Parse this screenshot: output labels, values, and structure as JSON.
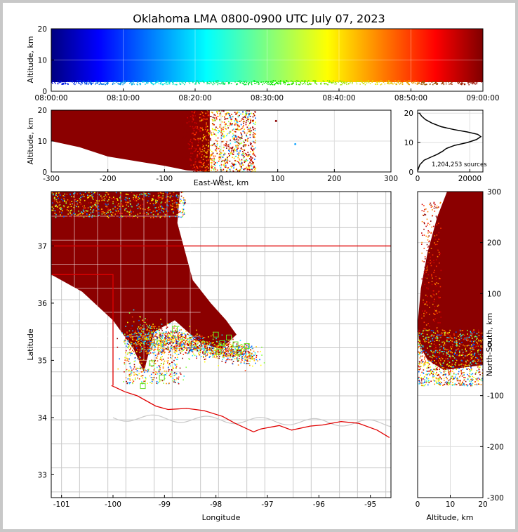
{
  "title": "Oklahoma LMA 0800-0900 UTC July 07, 2023",
  "colors": {
    "storm": "#8b0000",
    "state_border": "#e00000",
    "county_border": "#c8c8c8",
    "station": "#66dd22",
    "grid": "#dddddd"
  },
  "chart_data": [
    {
      "id": "time_altitude",
      "type": "scatter",
      "ylabel": "Altitude, km",
      "x_ticks": [
        "08:00:00",
        "08:10:00",
        "08:20:00",
        "08:30:00",
        "08:40:00",
        "08:50:00",
        "09:00:00"
      ],
      "x_range": [
        "08:00:00",
        "09:00:00"
      ],
      "y_range": [
        0,
        20
      ],
      "y_ticks": [
        0,
        10,
        20
      ],
      "colormap": "jet",
      "grid": true
    },
    {
      "id": "eastwest_altitude",
      "type": "scatter",
      "xlabel": "East-West, km",
      "ylabel": "Altitude, km",
      "x_range": [
        -300,
        300
      ],
      "x_ticks": [
        -300,
        -200,
        -100,
        0,
        100,
        200,
        300
      ],
      "y_range": [
        0,
        20
      ],
      "y_ticks": [
        0,
        10,
        20
      ],
      "grid": true
    },
    {
      "id": "altitude_histogram",
      "type": "line",
      "x_range": [
        0,
        25000
      ],
      "x_ticks": [
        0,
        20000
      ],
      "y_range": [
        0,
        21
      ],
      "y_ticks": [
        0,
        10,
        20
      ],
      "annotation": "1,204,253 sources",
      "curve": [
        {
          "count": 0,
          "alt": 0.3
        },
        {
          "count": 300,
          "alt": 1.2
        },
        {
          "count": 900,
          "alt": 2.5
        },
        {
          "count": 2500,
          "alt": 4
        },
        {
          "count": 5000,
          "alt": 5
        },
        {
          "count": 7500,
          "alt": 6
        },
        {
          "count": 9500,
          "alt": 7
        },
        {
          "count": 11000,
          "alt": 8
        },
        {
          "count": 14000,
          "alt": 9
        },
        {
          "count": 19000,
          "alt": 10
        },
        {
          "count": 22500,
          "alt": 11
        },
        {
          "count": 24200,
          "alt": 12
        },
        {
          "count": 23000,
          "alt": 12.8
        },
        {
          "count": 19000,
          "alt": 13.6
        },
        {
          "count": 14000,
          "alt": 14.4
        },
        {
          "count": 9000,
          "alt": 15.4
        },
        {
          "count": 5500,
          "alt": 16.6
        },
        {
          "count": 3000,
          "alt": 17.8
        },
        {
          "count": 1500,
          "alt": 19
        },
        {
          "count": 700,
          "alt": 20
        }
      ],
      "grid": true
    },
    {
      "id": "plan_view",
      "type": "scatter",
      "xlabel": "Longitude",
      "ylabel": "Latitude",
      "x_range": [
        -101.2,
        -94.6
      ],
      "x_ticks": [
        -101,
        -100,
        -99,
        -98,
        -97,
        -96,
        -95
      ],
      "y_range": [
        32.6,
        37.95
      ],
      "y_ticks": [
        33,
        34,
        35,
        36,
        37
      ],
      "stations": [
        {
          "lon": -98.0,
          "lat": 35.45
        },
        {
          "lon": -97.75,
          "lat": 35.4
        },
        {
          "lon": -97.88,
          "lat": 35.3
        },
        {
          "lon": -97.62,
          "lat": 35.28
        },
        {
          "lon": -97.4,
          "lat": 35.25
        },
        {
          "lon": -97.55,
          "lat": 35.15
        },
        {
          "lon": -97.95,
          "lat": 35.15
        },
        {
          "lon": -99.42,
          "lat": 34.55
        },
        {
          "lon": -99.05,
          "lat": 34.7
        },
        {
          "lon": -99.25,
          "lat": 34.95
        },
        {
          "lon": -98.8,
          "lat": 35.55
        }
      ],
      "grid": true
    },
    {
      "id": "altitude_northsouth",
      "type": "scatter",
      "xlabel": "Altitude, km",
      "ylabel": "North-South, km",
      "x_range": [
        0,
        20
      ],
      "x_ticks": [
        0,
        10,
        20
      ],
      "y_range": [
        -300,
        300
      ],
      "y_ticks": [
        -300,
        -200,
        -100,
        0,
        100,
        200,
        300
      ],
      "grid": true
    }
  ]
}
